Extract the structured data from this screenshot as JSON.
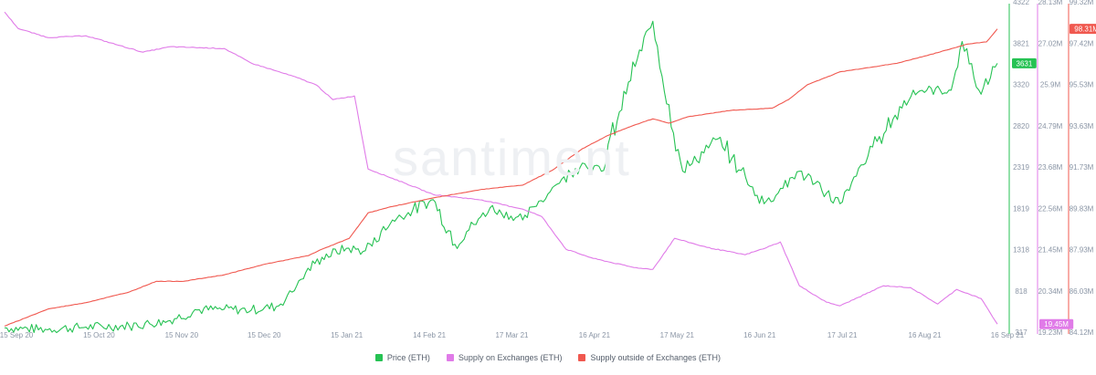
{
  "watermark": "santiment",
  "chart_data": {
    "type": "line",
    "x_ticks": [
      "15 Sep 20",
      "15 Oct 20",
      "15 Nov 20",
      "15 Dec 20",
      "15 Jan 21",
      "14 Feb 21",
      "17 Mar 21",
      "16 Apr 21",
      "17 May 21",
      "16 Jun 21",
      "17 Jul 21",
      "16 Aug 21",
      "16 Sep 21"
    ],
    "axes": {
      "price": {
        "ticks": [
          "317",
          "818",
          "1318",
          "1819",
          "2319",
          "2820",
          "3320",
          "3821",
          "4322"
        ],
        "ylim": [
          317,
          4322
        ],
        "color": "#26c253"
      },
      "supply_on": {
        "ticks": [
          "19.23M",
          "20.34M",
          "21.45M",
          "22.56M",
          "23.68M",
          "24.79M",
          "25.9M",
          "27.02M",
          "28.13M"
        ],
        "ylim": [
          19.23,
          28.13
        ],
        "color": "#e07be8"
      },
      "supply_outside": {
        "ticks": [
          "84.12M",
          "86.03M",
          "87.93M",
          "89.83M",
          "91.73M",
          "93.63M",
          "95.53M",
          "97.42M",
          "99.32M"
        ],
        "ylim": [
          84.12,
          99.32
        ],
        "color": "#f0584f"
      }
    },
    "badges": {
      "price": "3631",
      "supply_on": "19.45M",
      "supply_outside": "98.31M"
    },
    "series": [
      {
        "name": "Price (ETH)",
        "axis": "price",
        "color": "#26c253",
        "x": [
          "2020-09-15",
          "2020-09-30",
          "2020-10-15",
          "2020-10-31",
          "2020-11-15",
          "2020-11-25",
          "2020-12-05",
          "2020-12-15",
          "2020-12-25",
          "2021-01-04",
          "2021-01-10",
          "2021-01-19",
          "2021-01-26",
          "2021-02-05",
          "2021-02-20",
          "2021-02-28",
          "2021-03-13",
          "2021-03-25",
          "2021-04-05",
          "2021-04-16",
          "2021-04-23",
          "2021-05-03",
          "2021-05-12",
          "2021-05-23",
          "2021-06-05",
          "2021-06-22",
          "2021-07-05",
          "2021-07-20",
          "2021-08-01",
          "2021-08-16",
          "2021-08-30",
          "2021-09-03",
          "2021-09-10",
          "2021-09-16"
        ],
        "values": [
          370,
          352,
          380,
          395,
          460,
          590,
          600,
          590,
          640,
          1050,
          1240,
          1350,
          1320,
          1700,
          1950,
          1400,
          1850,
          1700,
          2100,
          2400,
          2300,
          3400,
          4150,
          2300,
          2700,
          1900,
          2300,
          1900,
          2600,
          3300,
          3300,
          3900,
          3250,
          3631
        ]
      },
      {
        "name": "Supply on Exchanges (ETH)",
        "axis": "supply_on",
        "color": "#e07be8",
        "x": [
          "2020-09-15",
          "2020-09-20",
          "2020-10-01",
          "2020-10-15",
          "2020-11-05",
          "2020-11-15",
          "2020-12-05",
          "2020-12-15",
          "2021-01-01",
          "2021-01-08",
          "2021-01-14",
          "2021-01-22",
          "2021-01-27",
          "2021-02-10",
          "2021-02-20",
          "2021-03-10",
          "2021-03-25",
          "2021-04-01",
          "2021-04-10",
          "2021-04-20",
          "2021-05-05",
          "2021-05-12",
          "2021-05-20",
          "2021-06-01",
          "2021-06-15",
          "2021-06-23",
          "2021-06-28",
          "2021-07-05",
          "2021-07-15",
          "2021-07-20",
          "2021-08-05",
          "2021-08-15",
          "2021-08-25",
          "2021-09-01",
          "2021-09-10",
          "2021-09-16"
        ],
        "values": [
          28.0,
          27.55,
          27.3,
          27.35,
          26.9,
          27.05,
          27.0,
          26.6,
          26.2,
          26.0,
          25.6,
          25.7,
          23.7,
          23.3,
          23.0,
          22.85,
          22.6,
          22.4,
          21.5,
          21.25,
          21.0,
          20.95,
          21.8,
          21.55,
          21.35,
          21.55,
          21.7,
          20.5,
          20.05,
          19.95,
          20.5,
          20.45,
          20.0,
          20.4,
          20.15,
          19.45
        ]
      },
      {
        "name": "Supply outside of Exchanges (ETH)",
        "axis": "supply_outside",
        "color": "#f0584f",
        "x": [
          "2020-09-15",
          "2020-10-01",
          "2020-10-15",
          "2020-10-31",
          "2020-11-10",
          "2020-11-20",
          "2020-12-05",
          "2020-12-20",
          "2021-01-05",
          "2021-01-10",
          "2021-01-20",
          "2021-01-27",
          "2021-02-05",
          "2021-02-20",
          "2021-03-10",
          "2021-03-25",
          "2021-04-05",
          "2021-04-16",
          "2021-04-25",
          "2021-05-05",
          "2021-05-12",
          "2021-05-18",
          "2021-05-25",
          "2021-06-10",
          "2021-06-25",
          "2021-07-01",
          "2021-07-08",
          "2021-07-20",
          "2021-08-10",
          "2021-08-25",
          "2021-09-05",
          "2021-09-12",
          "2021-09-16"
        ],
        "values": [
          84.4,
          85.2,
          85.5,
          86.0,
          86.5,
          86.5,
          86.8,
          87.3,
          87.7,
          88.0,
          88.5,
          89.7,
          90.0,
          90.4,
          90.8,
          91.0,
          91.7,
          92.7,
          93.3,
          93.8,
          94.1,
          93.9,
          94.2,
          94.5,
          94.6,
          95.0,
          95.7,
          96.3,
          96.7,
          97.2,
          97.6,
          97.7,
          98.31
        ]
      }
    ],
    "legend_position": "bottom",
    "grid": false
  }
}
